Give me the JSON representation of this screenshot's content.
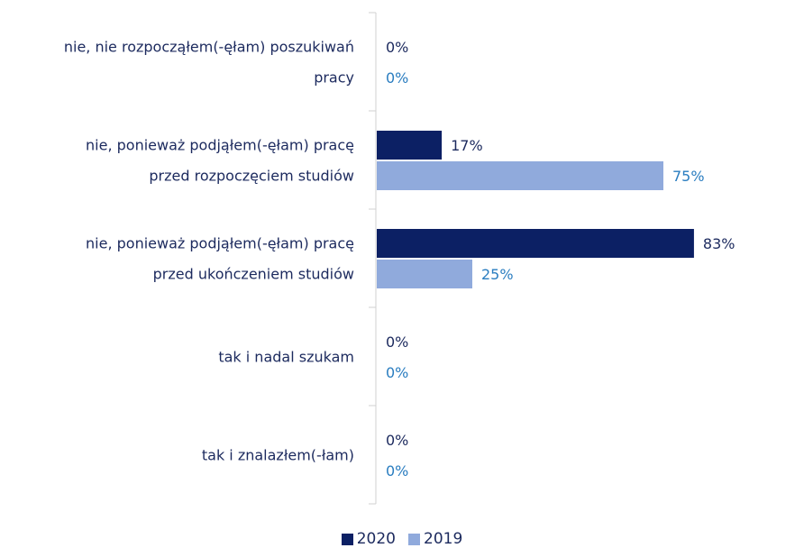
{
  "chart_data": {
    "type": "bar",
    "orientation": "horizontal",
    "categories": [
      [
        "nie, nie rozpocząłem(-ęłam) poszukiwań",
        "pracy"
      ],
      [
        "nie, ponieważ podjąłem(-ęłam) pracę",
        "przed rozpoczęciem studiów"
      ],
      [
        "nie, ponieważ podjąłem(-ęłam) pracę",
        "przed ukończeniem studiów"
      ],
      [
        "tak i nadal szukam"
      ],
      [
        "tak i znalazłem(-łam)"
      ]
    ],
    "series": [
      {
        "name": "2020",
        "color": "#0c2064",
        "label_color": "#1c2a5e",
        "values": [
          0,
          17,
          83,
          0,
          0
        ],
        "labels": [
          "0%",
          "17%",
          "83%",
          "0%",
          "0%"
        ]
      },
      {
        "name": "2019",
        "color": "#90aadc",
        "label_color": "#2a7dc0",
        "values": [
          0,
          75,
          25,
          0,
          0
        ],
        "labels": [
          "0%",
          "75%",
          "25%",
          "0%",
          "0%"
        ]
      }
    ],
    "xlim": [
      0,
      100
    ],
    "grid": false,
    "legend_position": "bottom"
  }
}
